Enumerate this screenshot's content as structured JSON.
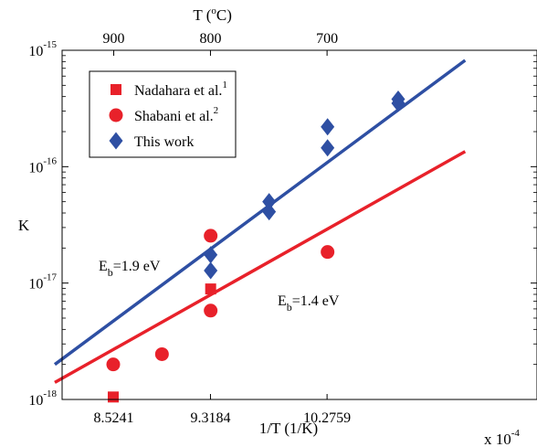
{
  "chart_data": {
    "type": "scatter",
    "x_axis": {
      "label": "1/T (1/K)",
      "multiplier": "x 10",
      "multiplier_exponent": "-4",
      "range_e4": [
        8.1,
        12.0
      ],
      "ticks_e4": [
        8.5241,
        9.3184,
        10.2759
      ],
      "tick_labels": [
        "8.5241",
        "9.3184",
        "10.2759"
      ]
    },
    "top_axis": {
      "label_prefix": "T (",
      "label_sup": "o",
      "label_suffix": "C)",
      "tick_labels": [
        "900",
        "800",
        "700"
      ],
      "tick_positions_e4": [
        8.5241,
        9.3184,
        10.2759
      ]
    },
    "y_axis": {
      "label": "K",
      "scale": "log",
      "range": [
        1e-18,
        1e-15
      ],
      "ticks": [
        {
          "base": "10",
          "exp": "-18",
          "value": 1e-18
        },
        {
          "base": "10",
          "exp": "-17",
          "value": 1e-17
        },
        {
          "base": "10",
          "exp": "-16",
          "value": 1e-16
        },
        {
          "base": "10",
          "exp": "-15",
          "value": 1e-15
        }
      ]
    },
    "series": [
      {
        "name": "Nadahara et al.",
        "name_sup": "1",
        "marker": "square",
        "color": "#e8212a",
        "points": [
          {
            "x_e4": 8.52,
            "y": 1.05e-18
          },
          {
            "x_e4": 9.32,
            "y": 8.9e-18
          }
        ]
      },
      {
        "name": "Shabani et al.",
        "name_sup": "2",
        "marker": "circle",
        "color": "#e8212a",
        "points": [
          {
            "x_e4": 8.52,
            "y": 2e-18
          },
          {
            "x_e4": 8.92,
            "y": 2.45e-18
          },
          {
            "x_e4": 9.32,
            "y": 2.55e-17
          },
          {
            "x_e4": 9.32,
            "y": 5.8e-18
          },
          {
            "x_e4": 10.28,
            "y": 1.85e-17
          }
        ]
      },
      {
        "name": "This work",
        "name_sup": "",
        "marker": "diamond",
        "color": "#2e4fa3",
        "points": [
          {
            "x_e4": 9.32,
            "y": 1.75e-17
          },
          {
            "x_e4": 9.32,
            "y": 1.28e-17
          },
          {
            "x_e4": 9.8,
            "y": 5e-17
          },
          {
            "x_e4": 9.8,
            "y": 4.1e-17
          },
          {
            "x_e4": 10.28,
            "y": 2.2e-16
          },
          {
            "x_e4": 10.28,
            "y": 1.45e-16
          },
          {
            "x_e4": 10.86,
            "y": 3.8e-16
          },
          {
            "x_e4": 10.86,
            "y": 3.5e-16
          }
        ]
      }
    ],
    "fits": [
      {
        "name": "blue-fit",
        "color": "#2e4fa3",
        "label_prefix": "E",
        "label_sub": "b",
        "label_suffix": "=1.9 eV",
        "start": {
          "x_e4": 8.04,
          "y": 2e-18
        },
        "end": {
          "x_e4": 11.41,
          "y": 8.2e-16
        }
      },
      {
        "name": "red-fit",
        "color": "#e8212a",
        "label_prefix": "E",
        "label_sub": "b",
        "label_suffix": "=1.4 eV",
        "start": {
          "x_e4": 8.04,
          "y": 1.4e-18
        },
        "end": {
          "x_e4": 11.41,
          "y": 1.35e-16
        }
      }
    ],
    "legend_position": "top-left",
    "grid": false
  }
}
